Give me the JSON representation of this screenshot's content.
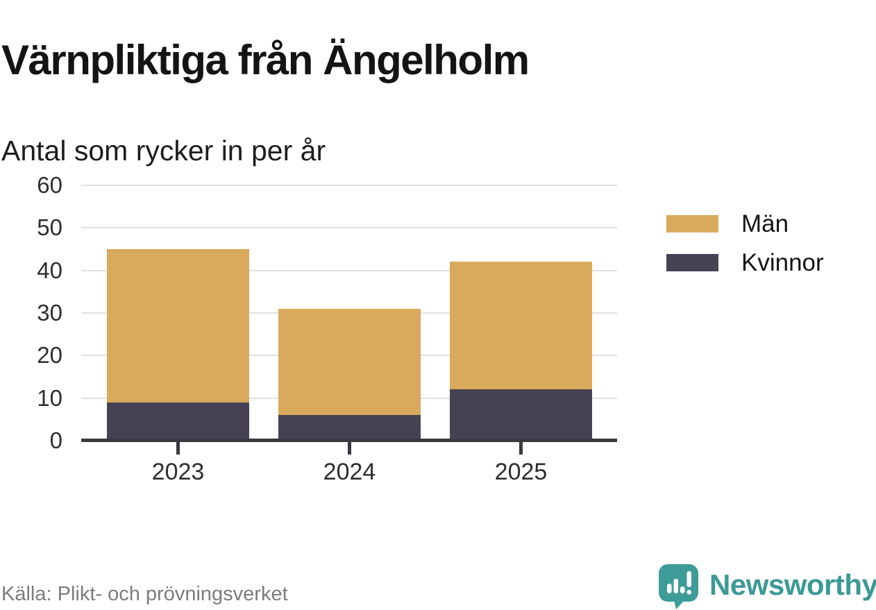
{
  "header": {
    "title": "Värnpliktiga från Ängelholm",
    "subtitle": "Antal som rycker in per år"
  },
  "chart_data": {
    "type": "bar",
    "stacked": true,
    "title": "Värnpliktiga från Ängelholm",
    "subtitle": "Antal som rycker in per år",
    "categories": [
      "2023",
      "2024",
      "2025"
    ],
    "series": [
      {
        "name": "Män",
        "color": "#d9a95c",
        "values": [
          36,
          25,
          30
        ]
      },
      {
        "name": "Kvinnor",
        "color": "#464253",
        "values": [
          9,
          6,
          12
        ]
      }
    ],
    "stack_order_bottom_to_top": [
      "Kvinnor",
      "Män"
    ],
    "totals": [
      45,
      31,
      42
    ],
    "xlabel": "",
    "ylabel": "",
    "ylim": [
      0,
      60
    ],
    "yticks": [
      0,
      10,
      20,
      30,
      40,
      50,
      60
    ],
    "grid": "horizontal",
    "legend_position": "right"
  },
  "legend": {
    "items": [
      {
        "label": "Män",
        "color": "#d9a95c"
      },
      {
        "label": "Kvinnor",
        "color": "#464253"
      }
    ]
  },
  "footer": {
    "source": "Källa: Plikt- och prövningsverket",
    "brand": "Newsworthy"
  },
  "colors": {
    "bar_men": "#d9a95c",
    "bar_women": "#464253",
    "axis": "#3b383f",
    "gridline": "#e1e1e1",
    "brand_teal": "#3b9a96",
    "title_text": "#141414",
    "muted_text": "#7d7b80"
  }
}
